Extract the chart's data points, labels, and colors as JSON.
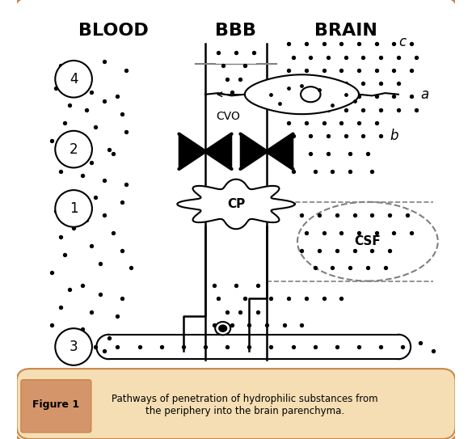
{
  "title": "",
  "fig_width": 5.84,
  "fig_height": 5.43,
  "bg_color": "#ffffff",
  "border_color": "#c8864a",
  "header_blood": "BLOOD",
  "header_bbb": "BBB",
  "header_brain": "BRAIN",
  "caption_fig": "Figure 1",
  "caption_text": "Pathways of penetration of hydrophilic substances from\nthe periphery into the brain parenchyma.",
  "label_CVO": "CVO",
  "label_CP": "CP",
  "label_CSF": "CSF",
  "label_a": "a",
  "label_b": "b",
  "label_c": "c",
  "circle_labels": [
    "4",
    "2",
    "1",
    "3"
  ]
}
